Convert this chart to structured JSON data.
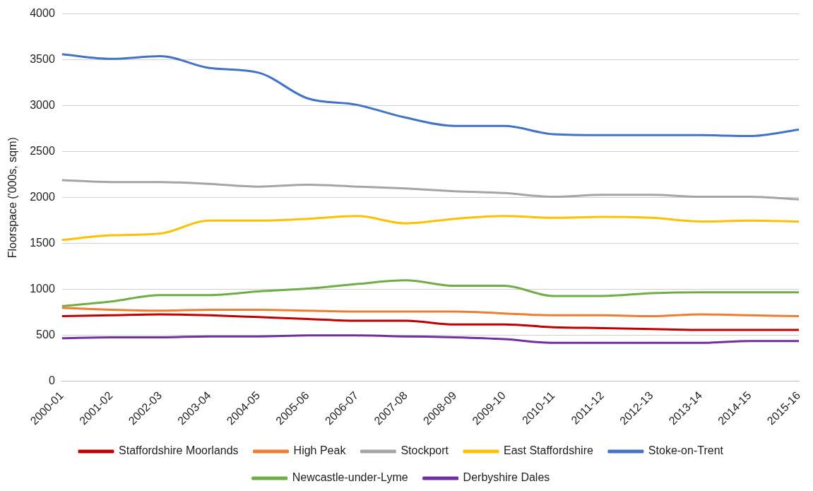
{
  "chart_data": {
    "type": "line",
    "ylabel": "Floorspace ('000s, sqm)",
    "categories": [
      "2000-01",
      "2001-02",
      "2002-03",
      "2003-04",
      "2004-05",
      "2005-06",
      "2006-07",
      "2007-08",
      "2008-09",
      "2009-10",
      "2010-11",
      "2011-12",
      "2012-13",
      "2013-14",
      "2014-15",
      "2015-16"
    ],
    "series": [
      {
        "name": "Staffordshire Moorlands",
        "color": "#c00000",
        "values": [
          710,
          720,
          730,
          720,
          700,
          680,
          660,
          660,
          620,
          620,
          590,
          580,
          570,
          560,
          560,
          560
        ]
      },
      {
        "name": "High Peak",
        "color": "#ed7d31",
        "values": [
          800,
          780,
          770,
          780,
          780,
          770,
          760,
          760,
          760,
          740,
          720,
          720,
          710,
          730,
          720,
          710
        ]
      },
      {
        "name": "Stockport",
        "color": "#a5a5a5",
        "values": [
          2190,
          2170,
          2170,
          2150,
          2120,
          2140,
          2120,
          2100,
          2070,
          2050,
          2010,
          2030,
          2030,
          2010,
          2010,
          1980
        ]
      },
      {
        "name": "East Staffordshire",
        "color": "#ffc000",
        "values": [
          1540,
          1590,
          1610,
          1750,
          1750,
          1770,
          1800,
          1720,
          1770,
          1800,
          1780,
          1790,
          1780,
          1740,
          1750,
          1740
        ]
      },
      {
        "name": "Stoke-on-Trent",
        "color": "#4472c4",
        "values": [
          3560,
          3510,
          3540,
          3410,
          3360,
          3080,
          3010,
          2870,
          2780,
          2780,
          2690,
          2680,
          2680,
          2680,
          2670,
          2740
        ]
      },
      {
        "name": "Newcastle-under-Lyme",
        "color": "#70ad47",
        "values": [
          820,
          870,
          940,
          940,
          980,
          1010,
          1060,
          1100,
          1040,
          1040,
          930,
          930,
          960,
          970,
          970,
          970
        ]
      },
      {
        "name": "Derbyshire Dales",
        "color": "#7030a0",
        "values": [
          470,
          480,
          480,
          490,
          490,
          500,
          500,
          490,
          480,
          460,
          420,
          420,
          420,
          420,
          440,
          440
        ]
      }
    ],
    "ylim": [
      0,
      4000
    ],
    "yticks": [
      0,
      500,
      1000,
      1500,
      2000,
      2500,
      3000,
      3500,
      4000
    ],
    "grid": "y",
    "legend": "bottom",
    "marker": "none",
    "line_style": "solid"
  }
}
